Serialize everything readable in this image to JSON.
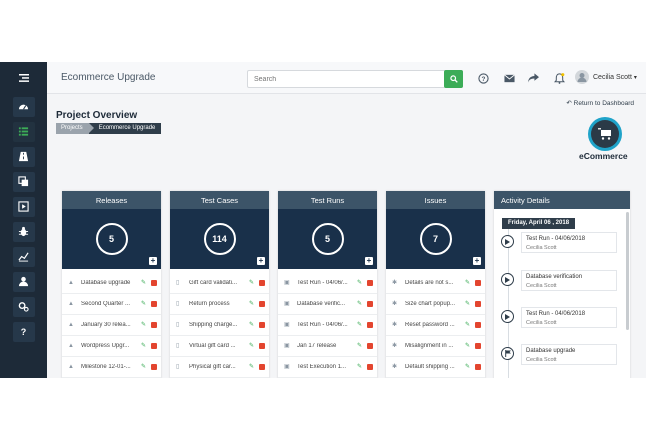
{
  "header": {
    "app_title": "Ecommerce Upgrade",
    "search_placeholder": "Search",
    "user_name": "Cecilia Scott"
  },
  "sidebar": {
    "items": [
      "menu-toggle",
      "dashboard",
      "list",
      "road",
      "copy",
      "play",
      "bug",
      "chart",
      "users",
      "settings",
      "help"
    ],
    "active": "list"
  },
  "page": {
    "title": "Project Overview",
    "breadcrumb": [
      "Projects",
      "Ecommerce Upgrade"
    ],
    "return_label": "Return to Dashboard",
    "logo_text": "eCommerce"
  },
  "cards": [
    {
      "title": "Releases",
      "count": "5",
      "rows": [
        "Database upgrade",
        "Second Quarter ...",
        "January 30 relea...",
        "Wordpress Upgr...",
        "Milestone 12-01-..."
      ]
    },
    {
      "title": "Test Cases",
      "count": "114",
      "rows": [
        "Gift card validati...",
        "Return process",
        "Shipping charge...",
        "Virtual gift card ...",
        "Physical gift car..."
      ]
    },
    {
      "title": "Test Runs",
      "count": "5",
      "rows": [
        "Test Run - 04/06/...",
        "Database verific...",
        "Test Run - 04/06/...",
        "Jan 17 release",
        "Test Execution 1..."
      ]
    },
    {
      "title": "Issues",
      "count": "7",
      "rows": [
        "Details are not s...",
        "Size chart popup...",
        "Reset password ...",
        "Misalignment in ...",
        "Default shipping ..."
      ]
    }
  ],
  "activity": {
    "title": "Activity Details",
    "date": "Friday, April 06 , 2018",
    "events": [
      {
        "title": "Test Run - 04/06/2018",
        "user": "Cecilia Scott",
        "icon": "play-icon"
      },
      {
        "title": "Database verification",
        "user": "Cecilia Scott",
        "icon": "play-icon"
      },
      {
        "title": "Test Run - 04/06/2018",
        "user": "Cecilia Scott",
        "icon": "play-icon"
      },
      {
        "title": "Database upgrade",
        "user": "Cecilia Scott",
        "icon": "flag-icon"
      }
    ]
  },
  "colors": {
    "sidebar": "#1d2a38",
    "card_header": "#3c5468",
    "card_big": "#19304a",
    "accent_green": "#3cac57",
    "delete_red": "#e3452f"
  }
}
